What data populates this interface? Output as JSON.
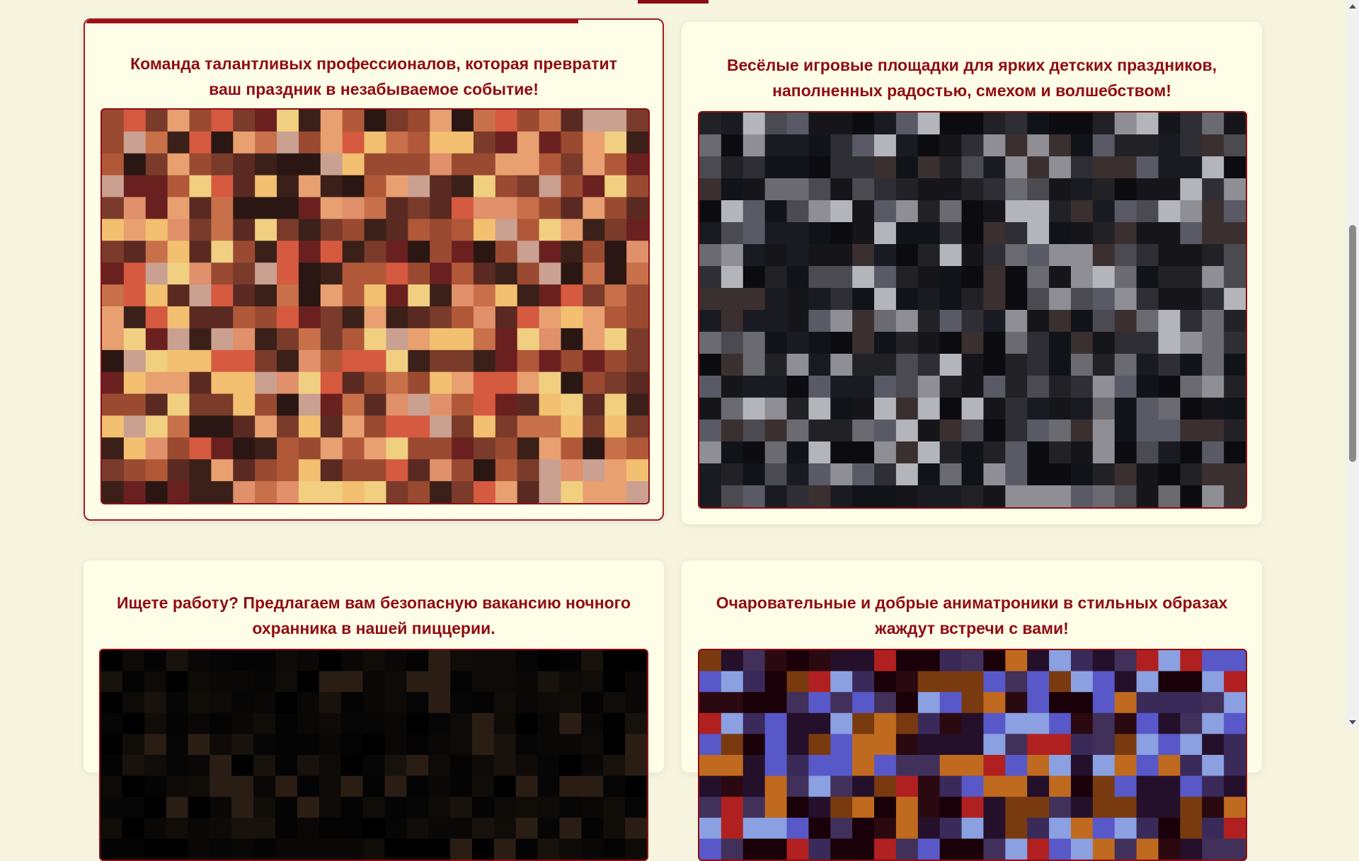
{
  "cards": [
    {
      "title": "Команда талантливых профессионалов, которая превратит ваш праздник в незабываемое событие!",
      "image_icon": "team-photo-icon",
      "palette": "warm"
    },
    {
      "title": "Весёлые игровые площадки для ярких детских праздников, наполненных радостью, смехом и волшебством!",
      "image_icon": "playground-photo-icon",
      "palette": "dark"
    },
    {
      "title": "Ищете работу? Предлагаем вам безопасную вакансию ночного охранника в нашей пиццерии.",
      "image_icon": "night-guard-photo-icon",
      "palette": "night"
    },
    {
      "title": "Очаровательные и добрые аниматроники в стильных образах жаждут встречи с вами!",
      "image_icon": "animatronics-photo-icon",
      "palette": "purple"
    }
  ],
  "colors": {
    "accent": "#8f0d12",
    "card_bg": "#fefde8",
    "page_bg": "#f6f3df"
  }
}
